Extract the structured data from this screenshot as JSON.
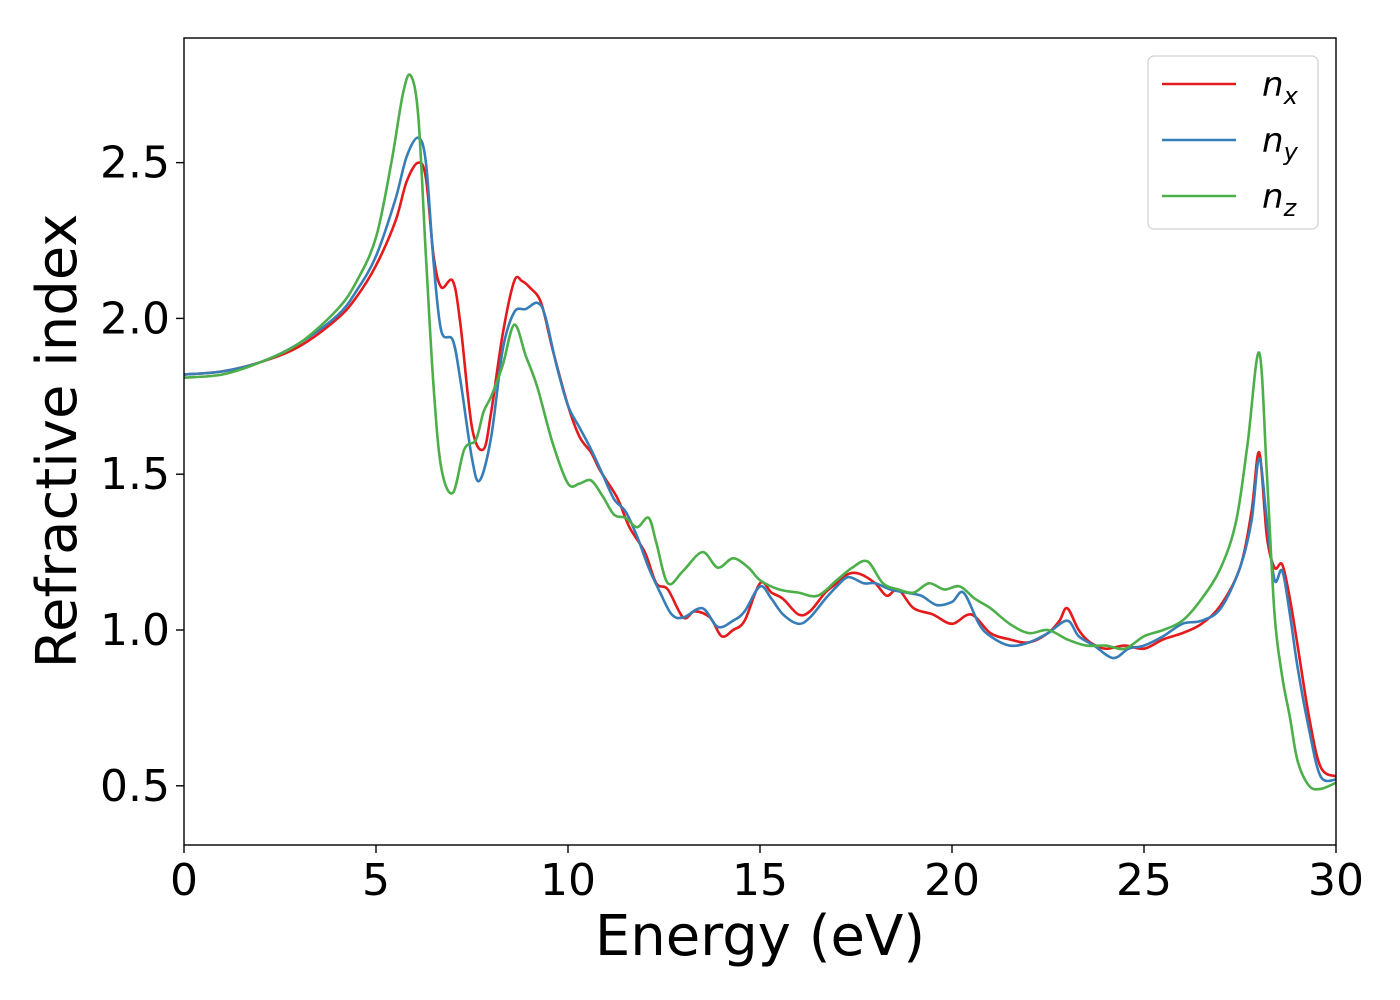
{
  "chart_data": {
    "type": "line",
    "xlabel": "Energy (eV)",
    "ylabel": "Refractive index",
    "xlim": [
      0,
      30
    ],
    "ylim": [
      0.31,
      2.9
    ],
    "x_ticks": [
      0,
      5,
      10,
      15,
      20,
      25,
      30
    ],
    "x_tick_labels": [
      "0",
      "5",
      "10",
      "15",
      "20",
      "25",
      "30"
    ],
    "y_ticks": [
      0.5,
      1.0,
      1.5,
      2.0,
      2.5
    ],
    "y_tick_labels": [
      "0.5",
      "1.0",
      "1.5",
      "2.0",
      "2.5"
    ],
    "grid": false,
    "legend_position": "top-right",
    "series": [
      {
        "name": "n_x",
        "label_base": "n",
        "label_sub": "x",
        "color": "#e41a1c",
        "points": [
          [
            0,
            1.82
          ],
          [
            1,
            1.83
          ],
          [
            2,
            1.86
          ],
          [
            3,
            1.91
          ],
          [
            4,
            2.0
          ],
          [
            4.5,
            2.07
          ],
          [
            5,
            2.17
          ],
          [
            5.5,
            2.31
          ],
          [
            5.8,
            2.44
          ],
          [
            6.1,
            2.5
          ],
          [
            6.3,
            2.45
          ],
          [
            6.5,
            2.2
          ],
          [
            6.7,
            2.1
          ],
          [
            7.0,
            2.12
          ],
          [
            7.2,
            1.98
          ],
          [
            7.5,
            1.65
          ],
          [
            7.8,
            1.58
          ],
          [
            8.0,
            1.7
          ],
          [
            8.3,
            1.95
          ],
          [
            8.6,
            2.12
          ],
          [
            8.8,
            2.12
          ],
          [
            9.0,
            2.1
          ],
          [
            9.3,
            2.05
          ],
          [
            9.6,
            1.9
          ],
          [
            10.0,
            1.72
          ],
          [
            10.3,
            1.62
          ],
          [
            10.6,
            1.57
          ],
          [
            10.8,
            1.52
          ],
          [
            11.0,
            1.48
          ],
          [
            11.3,
            1.42
          ],
          [
            11.6,
            1.33
          ],
          [
            12.0,
            1.25
          ],
          [
            12.3,
            1.15
          ],
          [
            12.6,
            1.13
          ],
          [
            13.0,
            1.04
          ],
          [
            13.3,
            1.06
          ],
          [
            13.7,
            1.04
          ],
          [
            14.0,
            0.98
          ],
          [
            14.3,
            1.0
          ],
          [
            14.6,
            1.03
          ],
          [
            15.0,
            1.15
          ],
          [
            15.3,
            1.12
          ],
          [
            15.6,
            1.1
          ],
          [
            16.0,
            1.05
          ],
          [
            16.3,
            1.06
          ],
          [
            16.7,
            1.12
          ],
          [
            17.0,
            1.15
          ],
          [
            17.3,
            1.18
          ],
          [
            17.6,
            1.18
          ],
          [
            18.0,
            1.15
          ],
          [
            18.3,
            1.11
          ],
          [
            18.6,
            1.13
          ],
          [
            19.0,
            1.07
          ],
          [
            19.5,
            1.05
          ],
          [
            20.0,
            1.02
          ],
          [
            20.5,
            1.05
          ],
          [
            21.0,
            0.99
          ],
          [
            21.5,
            0.97
          ],
          [
            22.0,
            0.96
          ],
          [
            22.5,
            0.99
          ],
          [
            22.8,
            1.03
          ],
          [
            23.0,
            1.07
          ],
          [
            23.3,
            1.0
          ],
          [
            23.6,
            0.96
          ],
          [
            24.0,
            0.94
          ],
          [
            24.5,
            0.95
          ],
          [
            25.0,
            0.94
          ],
          [
            25.5,
            0.97
          ],
          [
            26.0,
            0.99
          ],
          [
            26.5,
            1.02
          ],
          [
            27.0,
            1.08
          ],
          [
            27.5,
            1.2
          ],
          [
            27.8,
            1.38
          ],
          [
            28.0,
            1.57
          ],
          [
            28.2,
            1.3
          ],
          [
            28.4,
            1.2
          ],
          [
            28.6,
            1.21
          ],
          [
            28.8,
            1.1
          ],
          [
            29.0,
            0.95
          ],
          [
            29.3,
            0.72
          ],
          [
            29.6,
            0.56
          ],
          [
            30,
            0.53
          ]
        ]
      },
      {
        "name": "n_y",
        "label_base": "n",
        "label_sub": "y",
        "color": "#377eb8",
        "points": [
          [
            0,
            1.82
          ],
          [
            1,
            1.83
          ],
          [
            2,
            1.86
          ],
          [
            3,
            1.92
          ],
          [
            4,
            2.01
          ],
          [
            4.5,
            2.09
          ],
          [
            5,
            2.2
          ],
          [
            5.5,
            2.38
          ],
          [
            5.8,
            2.52
          ],
          [
            6.1,
            2.58
          ],
          [
            6.3,
            2.5
          ],
          [
            6.5,
            2.18
          ],
          [
            6.7,
            1.96
          ],
          [
            7.0,
            1.93
          ],
          [
            7.2,
            1.8
          ],
          [
            7.5,
            1.55
          ],
          [
            7.7,
            1.48
          ],
          [
            8.0,
            1.62
          ],
          [
            8.3,
            1.9
          ],
          [
            8.6,
            2.02
          ],
          [
            8.9,
            2.03
          ],
          [
            9.2,
            2.05
          ],
          [
            9.4,
            2.01
          ],
          [
            9.7,
            1.85
          ],
          [
            10.0,
            1.72
          ],
          [
            10.3,
            1.65
          ],
          [
            10.6,
            1.58
          ],
          [
            10.9,
            1.5
          ],
          [
            11.2,
            1.42
          ],
          [
            11.5,
            1.38
          ],
          [
            11.8,
            1.3
          ],
          [
            12.1,
            1.2
          ],
          [
            12.4,
            1.12
          ],
          [
            12.7,
            1.05
          ],
          [
            13.0,
            1.04
          ],
          [
            13.5,
            1.07
          ],
          [
            13.9,
            1.01
          ],
          [
            14.3,
            1.03
          ],
          [
            14.6,
            1.06
          ],
          [
            15.0,
            1.14
          ],
          [
            15.3,
            1.1
          ],
          [
            15.6,
            1.05
          ],
          [
            16.0,
            1.02
          ],
          [
            16.3,
            1.04
          ],
          [
            16.7,
            1.1
          ],
          [
            17.0,
            1.14
          ],
          [
            17.3,
            1.17
          ],
          [
            17.7,
            1.15
          ],
          [
            18.0,
            1.15
          ],
          [
            18.4,
            1.13
          ],
          [
            18.8,
            1.12
          ],
          [
            19.2,
            1.11
          ],
          [
            19.6,
            1.08
          ],
          [
            20.0,
            1.09
          ],
          [
            20.3,
            1.12
          ],
          [
            20.7,
            1.02
          ],
          [
            21.0,
            0.98
          ],
          [
            21.5,
            0.95
          ],
          [
            22.0,
            0.96
          ],
          [
            22.5,
            0.99
          ],
          [
            23.0,
            1.03
          ],
          [
            23.3,
            0.98
          ],
          [
            23.7,
            0.95
          ],
          [
            24.2,
            0.91
          ],
          [
            24.6,
            0.94
          ],
          [
            25.0,
            0.95
          ],
          [
            25.5,
            0.98
          ],
          [
            26.0,
            1.02
          ],
          [
            26.5,
            1.03
          ],
          [
            27.0,
            1.07
          ],
          [
            27.5,
            1.2
          ],
          [
            27.8,
            1.35
          ],
          [
            28.0,
            1.55
          ],
          [
            28.2,
            1.35
          ],
          [
            28.4,
            1.16
          ],
          [
            28.6,
            1.19
          ],
          [
            28.8,
            1.05
          ],
          [
            29.0,
            0.88
          ],
          [
            29.3,
            0.68
          ],
          [
            29.6,
            0.53
          ],
          [
            30,
            0.52
          ]
        ]
      },
      {
        "name": "n_z",
        "label_base": "n",
        "label_sub": "z",
        "color": "#4daf4a",
        "points": [
          [
            0,
            1.81
          ],
          [
            1,
            1.82
          ],
          [
            2,
            1.86
          ],
          [
            3,
            1.92
          ],
          [
            4,
            2.03
          ],
          [
            4.5,
            2.12
          ],
          [
            5,
            2.26
          ],
          [
            5.4,
            2.5
          ],
          [
            5.7,
            2.72
          ],
          [
            5.9,
            2.78
          ],
          [
            6.1,
            2.65
          ],
          [
            6.3,
            2.2
          ],
          [
            6.5,
            1.78
          ],
          [
            6.7,
            1.52
          ],
          [
            7.0,
            1.44
          ],
          [
            7.3,
            1.58
          ],
          [
            7.6,
            1.61
          ],
          [
            7.8,
            1.7
          ],
          [
            8.0,
            1.75
          ],
          [
            8.3,
            1.85
          ],
          [
            8.6,
            1.98
          ],
          [
            8.9,
            1.88
          ],
          [
            9.2,
            1.78
          ],
          [
            9.6,
            1.6
          ],
          [
            10.0,
            1.47
          ],
          [
            10.3,
            1.47
          ],
          [
            10.6,
            1.48
          ],
          [
            10.9,
            1.43
          ],
          [
            11.2,
            1.37
          ],
          [
            11.5,
            1.36
          ],
          [
            11.8,
            1.33
          ],
          [
            12.1,
            1.36
          ],
          [
            12.3,
            1.28
          ],
          [
            12.6,
            1.15
          ],
          [
            13.0,
            1.19
          ],
          [
            13.5,
            1.25
          ],
          [
            13.9,
            1.2
          ],
          [
            14.3,
            1.23
          ],
          [
            14.7,
            1.2
          ],
          [
            15.0,
            1.16
          ],
          [
            15.5,
            1.13
          ],
          [
            16.0,
            1.12
          ],
          [
            16.5,
            1.11
          ],
          [
            17.0,
            1.16
          ],
          [
            17.4,
            1.2
          ],
          [
            17.8,
            1.22
          ],
          [
            18.2,
            1.15
          ],
          [
            18.6,
            1.13
          ],
          [
            19.0,
            1.12
          ],
          [
            19.4,
            1.15
          ],
          [
            19.8,
            1.13
          ],
          [
            20.2,
            1.14
          ],
          [
            20.6,
            1.1
          ],
          [
            21.0,
            1.07
          ],
          [
            21.5,
            1.02
          ],
          [
            22.0,
            0.99
          ],
          [
            22.5,
            1.0
          ],
          [
            23.0,
            0.97
          ],
          [
            23.5,
            0.95
          ],
          [
            24.0,
            0.95
          ],
          [
            24.5,
            0.94
          ],
          [
            25.0,
            0.98
          ],
          [
            25.5,
            1.0
          ],
          [
            26.0,
            1.03
          ],
          [
            26.5,
            1.1
          ],
          [
            27.0,
            1.2
          ],
          [
            27.4,
            1.35
          ],
          [
            27.7,
            1.6
          ],
          [
            28.0,
            1.89
          ],
          [
            28.2,
            1.5
          ],
          [
            28.4,
            1.05
          ],
          [
            28.6,
            0.85
          ],
          [
            28.8,
            0.72
          ],
          [
            29.0,
            0.58
          ],
          [
            29.3,
            0.5
          ],
          [
            29.6,
            0.49
          ],
          [
            30,
            0.51
          ]
        ]
      }
    ]
  }
}
